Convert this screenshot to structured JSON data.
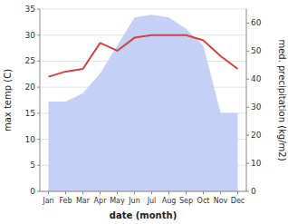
{
  "chart_data": {
    "type": "line",
    "categories": [
      "Jan",
      "Feb",
      "Mar",
      "Apr",
      "May",
      "Jun",
      "Jul",
      "Aug",
      "Sep",
      "Oct",
      "Nov",
      "Dec"
    ],
    "xlabel": "date (month)",
    "ylabel": "max temp (C)",
    "y2label": "med. precipitation (kg/m2)",
    "series": [
      {
        "type": "area",
        "axis": "y2",
        "color": "#c5d0f5",
        "values": [
          32,
          32,
          35,
          42,
          52,
          62,
          63,
          62,
          58,
          52,
          28,
          28
        ]
      },
      {
        "type": "line",
        "color": "#cc4444",
        "values": [
          22.0,
          23.0,
          23.5,
          28.5,
          27.0,
          29.5,
          30.0,
          30.0,
          30.0,
          29.0,
          26.0,
          23.5
        ]
      }
    ],
    "ylim": [
      0,
      35
    ],
    "yticks": [
      0,
      5,
      10,
      15,
      20,
      25,
      30,
      35
    ],
    "y2lim": [
      0,
      65
    ],
    "y2ticks": [
      0,
      10,
      20,
      30,
      40,
      50,
      60
    ],
    "grid": true
  }
}
